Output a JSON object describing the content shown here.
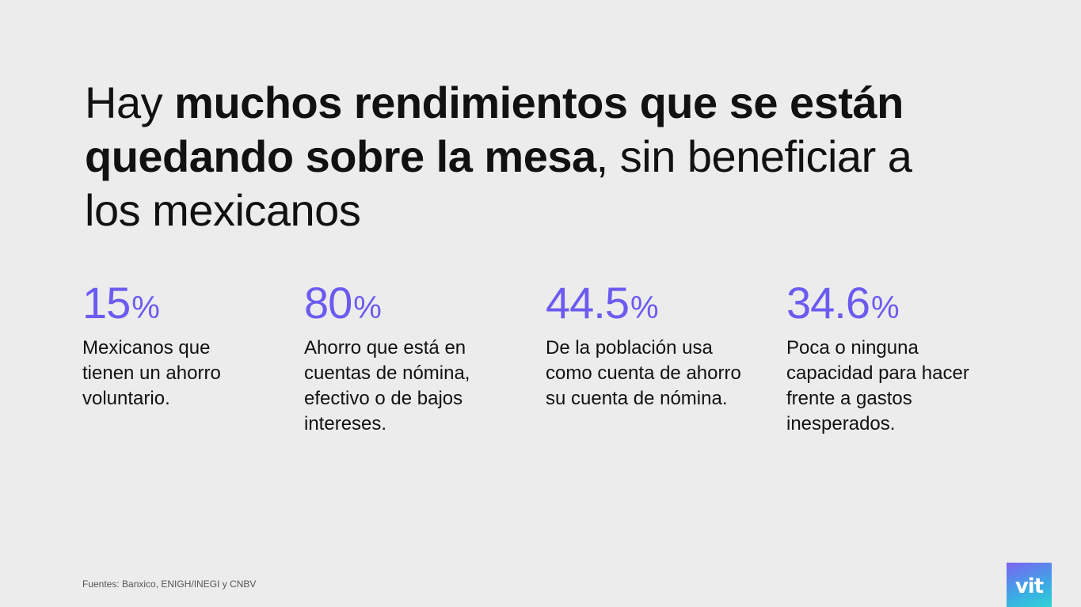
{
  "headline": {
    "part1": "Hay ",
    "bold1": "muchos rendimientos que se están quedando sobre la mesa",
    "part2": ", sin beneficiar a los mexicanos"
  },
  "stats": [
    {
      "value": "15",
      "unit": "%",
      "description": "Mexicanos que tienen un ahorro voluntario."
    },
    {
      "value": "80",
      "unit": "%",
      "description": "Ahorro que está en cuentas de nómina, efectivo o de bajos intereses."
    },
    {
      "value": "44.5",
      "unit": "%",
      "description": "De la población usa como cuenta de ahorro su cuenta de nómina."
    },
    {
      "value": "34.6",
      "unit": "%",
      "description": "Poca o ninguna capacidad para hacer frente a gastos inesperados."
    }
  ],
  "footer": {
    "sources": "Fuentes: Banxico, ENIGH/INEGI y CNBV"
  },
  "logo": {
    "text": "vit"
  },
  "colors": {
    "background": "#ececec",
    "accent": "#6b5bf0",
    "text": "#111111"
  }
}
